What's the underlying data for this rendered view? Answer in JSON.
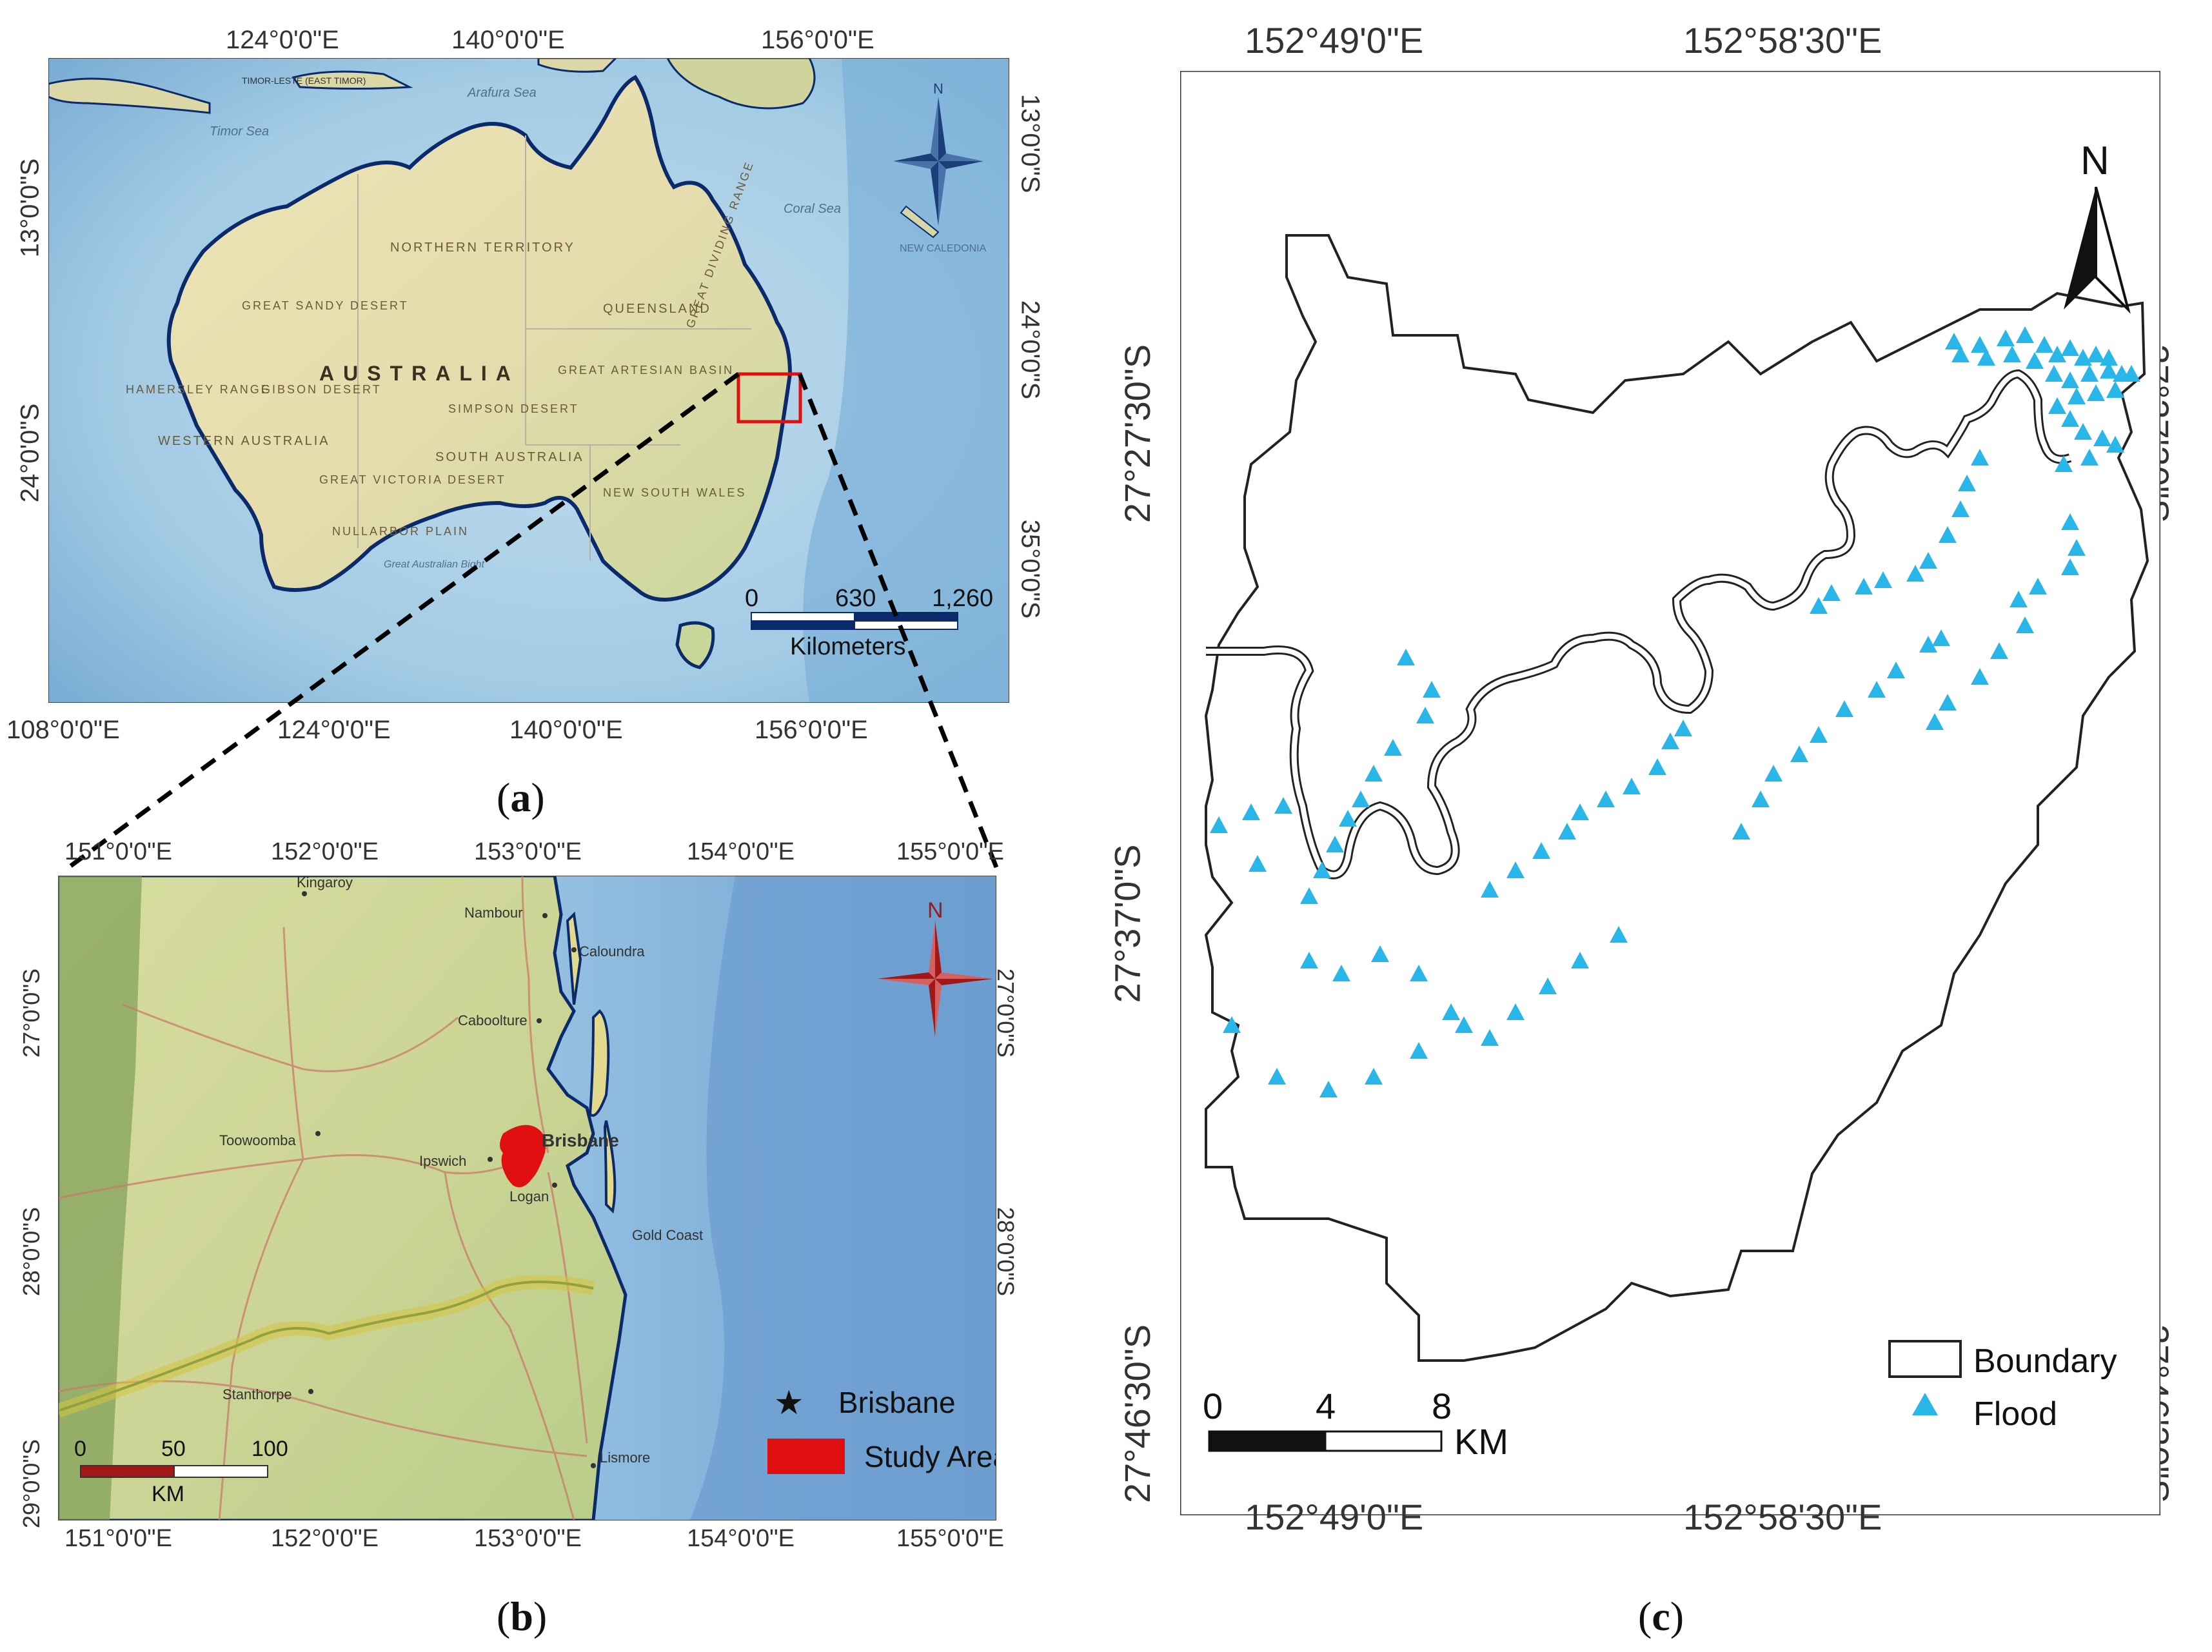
{
  "panel_a": {
    "caption_letter": "a",
    "top_lon_labels": [
      "124°0'0\"E",
      "140°0'0\"E",
      "156°0'0\"E"
    ],
    "bottom_lon_labels": [
      "108°0'0\"E",
      "124°0'0\"E",
      "140°0'0\"E",
      "156°0'0\"E"
    ],
    "left_lat_labels": [
      "13°0'0\"S",
      "24°0'0\"S"
    ],
    "right_lat_labels": [
      "13°0'0\"S",
      "24°0'0\"S",
      "35°0'0\"S"
    ],
    "map_labels": {
      "australia": "AUSTRALIA",
      "northern_territory": "NORTHERN TERRITORY",
      "queensland": "QUEENSLAND",
      "western_australia": "WESTERN AUSTRALIA",
      "south_australia": "SOUTH AUSTRALIA",
      "new_south_wales": "NEW SOUTH WALES",
      "great_sandy_desert": "GREAT SANDY DESERT",
      "gibson_desert": "GIBSON DESERT",
      "simpson_desert": "SIMPSON DESERT",
      "great_victoria_desert": "GREAT VICTORIA DESERT",
      "great_artesian_basin": "GREAT ARTESIAN BASIN",
      "hamersley_range": "HAMERSLEY RANGE",
      "great_dividing_range": "GREAT DIVIDING RANGE",
      "nullarbor_plain": "NULLARBOR PLAIN",
      "timor_sea": "Timor Sea",
      "arafura_sea": "Arafura Sea",
      "coral_sea": "Coral Sea",
      "new_caledonia": "NEW CALEDONIA",
      "great_australian_bight": "Great Australian Bight",
      "timor_leste": "TIMOR-LESTE (EAST TIMOR)"
    },
    "scale": {
      "ticks": [
        "0",
        "630",
        "1,260"
      ],
      "unit": "Kilometers"
    },
    "north_label": "N"
  },
  "panel_b": {
    "caption_letter": "b",
    "top_lon_labels": [
      "151°0'0\"E",
      "152°0'0\"E",
      "153°0'0\"E",
      "154°0'0\"E",
      "155°0'0\"E"
    ],
    "bottom_lon_labels": [
      "151°0'0\"E",
      "152°0'0\"E",
      "153°0'0\"E",
      "154°0'0\"E",
      "155°0'0\"E"
    ],
    "lat_labels": [
      "27°0'0\"S",
      "28°0'0\"S",
      "29°0'0\"S"
    ],
    "places": [
      "Kingaroy",
      "Nambour",
      "Caloundra",
      "Caboolture",
      "Brisbane",
      "Toowoomba",
      "Ipswich",
      "Logan",
      "Gold Coast",
      "Stanthorpe",
      "Lismore"
    ],
    "north_label": "N",
    "scale": {
      "ticks": [
        "0",
        "50",
        "100"
      ],
      "unit": "KM"
    },
    "legend": {
      "brisbane": "Brisbane",
      "study_area": "Study Area"
    }
  },
  "panel_c": {
    "caption_letter": "c",
    "lon_labels": [
      "152°49'0\"E",
      "152°58'30\"E"
    ],
    "lat_labels": [
      "27°27'30\"S",
      "27°37'0\"S",
      "27°46'30\"S"
    ],
    "north_label": "N",
    "scale": {
      "ticks": [
        "0",
        "4",
        "8"
      ],
      "unit": "KM"
    },
    "legend": {
      "boundary": "Boundary",
      "flood": "Flood"
    },
    "flood_color": "#29b6e8"
  },
  "colors": {
    "land": "#e6e2b4",
    "ocean": "#a9cfe6",
    "deep_ocean": "#6fa7d3",
    "coast": "#0b2a6b",
    "study_red": "#e01010",
    "compass_blue": "#1a3f7a",
    "compass_red": "#a01818"
  }
}
